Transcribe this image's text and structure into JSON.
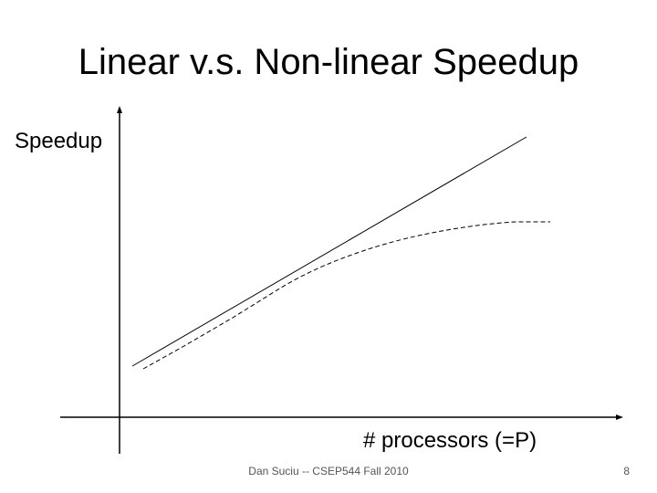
{
  "slide": {
    "title": "Linear v.s. Non-linear Speedup",
    "footer": "Dan Suciu -- CSEP544 Fall 2010",
    "number": "8"
  },
  "diagram": {
    "y_axis_label": "Speedup",
    "x_axis_label": "# processors (=P)",
    "colors": {
      "lines": "#000000",
      "footer_text": "#555555"
    }
  }
}
